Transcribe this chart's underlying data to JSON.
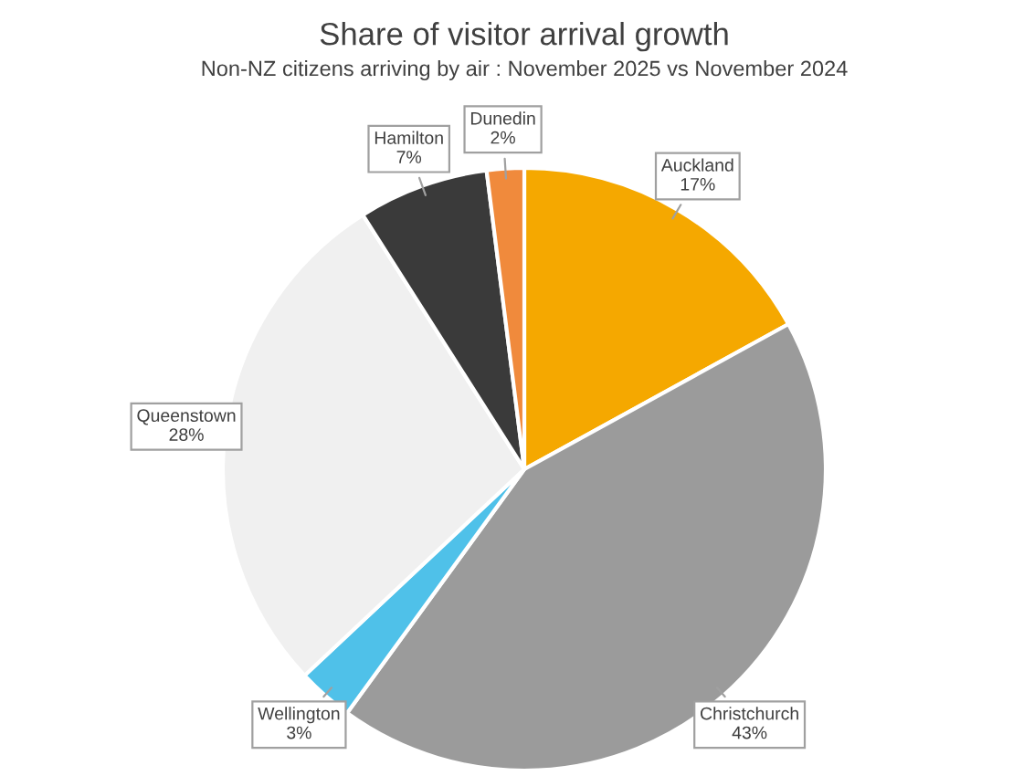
{
  "chart_data": {
    "type": "pie",
    "title": "Share of visitor arrival growth",
    "subtitle": "Non-NZ citizens arriving by air : November 2025 vs November 2024",
    "categories": [
      "Auckland",
      "Christchurch",
      "Wellington",
      "Queenstown",
      "Hamilton",
      "Dunedin"
    ],
    "values": [
      17,
      43,
      3,
      28,
      7,
      2
    ],
    "colors": [
      "#f5a800",
      "#9b9b9b",
      "#4fc1e9",
      "#f0f0f0",
      "#3a3a3a",
      "#f08a3c"
    ],
    "value_labels": [
      "17%",
      "43%",
      "3%",
      "28%",
      "7%",
      "2%"
    ],
    "legend": false
  }
}
